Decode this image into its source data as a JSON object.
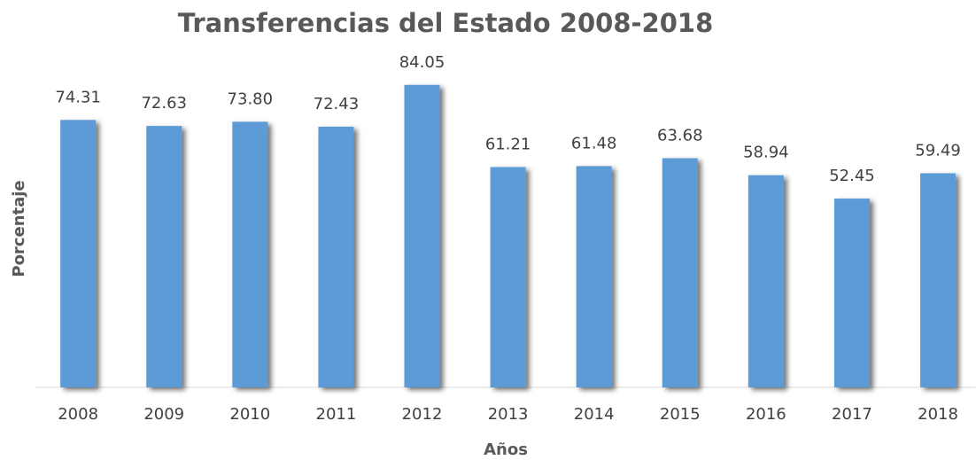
{
  "chart_data": {
    "type": "bar",
    "title": "Transferencias del Estado 2008-2018",
    "x_label": "Años",
    "y_label": "Porcentaje",
    "categories": [
      "2008",
      "2009",
      "2010",
      "2011",
      "2012",
      "2013",
      "2014",
      "2015",
      "2016",
      "2017",
      "2018"
    ],
    "values": [
      74.31,
      72.63,
      73.8,
      72.43,
      84.05,
      61.21,
      61.48,
      63.68,
      58.94,
      52.45,
      59.49
    ],
    "value_labels": [
      "74.31",
      "72.63",
      "73.80",
      "72.43",
      "84.05",
      "61.21",
      "61.48",
      "63.68",
      "58.94",
      "52.45",
      "59.49"
    ],
    "color": "#5b9bd5",
    "ylim": [
      0,
      100
    ]
  }
}
